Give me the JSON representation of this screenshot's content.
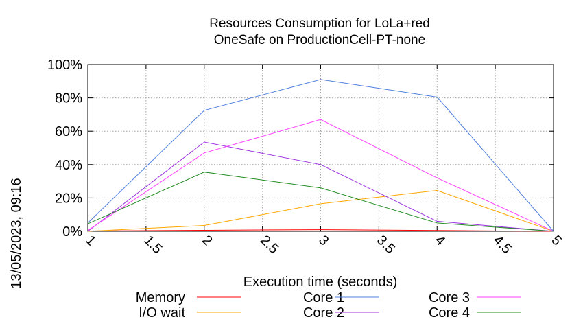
{
  "side_label": "13/05/2023, 09:16",
  "chart_data": {
    "type": "line",
    "title": [
      "Resources Consumption for LoLa+red",
      "OneSafe on ProductionCell-PT-none"
    ],
    "xlabel": "Execution time (seconds)",
    "ylabel": "",
    "xlim": [
      1,
      5
    ],
    "ylim": [
      0,
      100
    ],
    "x_ticks": [
      "1",
      "1.5",
      "2",
      "2.5",
      "3",
      "3.5",
      "4",
      "4.5",
      "5"
    ],
    "y_ticks": [
      "0%",
      "20%",
      "40%",
      "60%",
      "80%",
      "100%"
    ],
    "grid": true,
    "legend_position": "bottom",
    "x": [
      1,
      2,
      3,
      4,
      5
    ],
    "series": [
      {
        "name": "Memory",
        "color": "#ff0000",
        "values": [
          0.2,
          0.6,
          1.0,
          0.5,
          0
        ]
      },
      {
        "name": "I/O wait",
        "color": "#ffa500",
        "values": [
          0,
          3.5,
          16.5,
          24.5,
          0
        ]
      },
      {
        "name": "Core 1",
        "color": "#4f7fdf",
        "values": [
          5,
          72.5,
          91,
          80.5,
          0
        ]
      },
      {
        "name": "Core 2",
        "color": "#9b30e0",
        "values": [
          0,
          53.5,
          40,
          6,
          0
        ]
      },
      {
        "name": "Core 3",
        "color": "#ff3fff",
        "values": [
          0.5,
          47,
          67,
          32,
          0
        ]
      },
      {
        "name": "Core 4",
        "color": "#228b22",
        "values": [
          4.5,
          35.5,
          26,
          5,
          0
        ]
      }
    ]
  }
}
